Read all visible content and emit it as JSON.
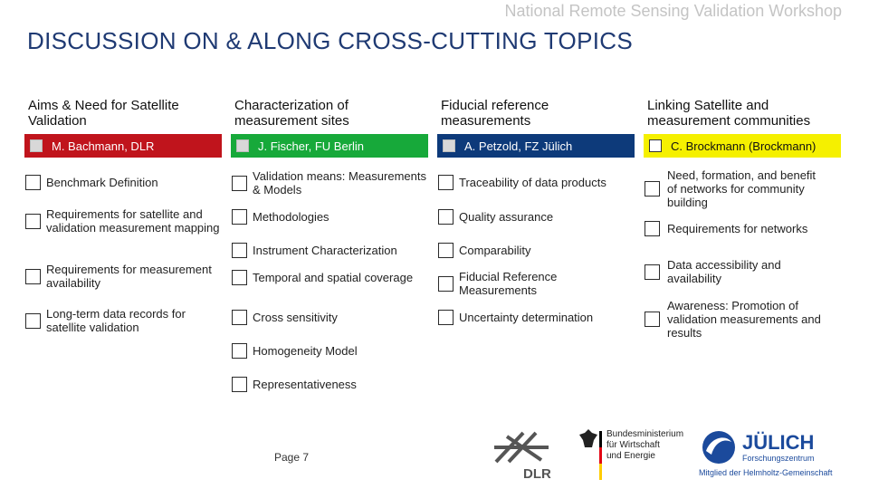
{
  "header": {
    "workshop_title": "National Remote Sensing Validation Workshop"
  },
  "slide_title": "DISCUSSION ON & ALONG CROSS-CUTTING TOPICS",
  "columns": [
    {
      "heading": "Aims & Need for Satellite Validation",
      "lead": "M. Bachmann, DLR",
      "lead_color": "#c0141c",
      "items": [
        "Benchmark Definition",
        "Requirements for satellite and validation measurement mapping",
        "Requirements for measurement availability",
        "Long-term data records for satellite validation"
      ]
    },
    {
      "heading": "Characterization of measurement sites",
      "lead": "J. Fischer, FU Berlin",
      "lead_color": "#17a93a",
      "items": [
        "Validation means: Measurements & Models",
        "Methodologies",
        "Instrument Characterization",
        "Temporal and spatial coverage",
        "Cross sensitivity",
        "Homogeneity Model",
        "Representativeness"
      ]
    },
    {
      "heading": "Fiducial reference measurements",
      "lead": "A. Petzold, FZ Jülich",
      "lead_color": "#0d3a7a",
      "items": [
        "Traceability of data products",
        "Quality assurance",
        "Comparability",
        "Fiducial Reference Measurements",
        "Uncertainty determination"
      ]
    },
    {
      "heading": "Linking Satellite and measurement communities",
      "lead": "C. Brockmann (Brockmann)",
      "lead_color": "#f5f000",
      "items": [
        "Need, formation, and benefit of networks for community building",
        "Requirements for networks",
        "Data accessibility and availability",
        "Awareness: Promotion of validation measurements and results"
      ]
    }
  ],
  "footer": {
    "page_label": "Page 7",
    "dlr_logo_text": "DLR",
    "ministry_line1": "Bundesministerium",
    "ministry_line2": "für Wirtschaft",
    "ministry_line3": "und Energie",
    "juelich_name": "JÜLICH",
    "juelich_sub": "Forschungszentrum",
    "helmholtz_text": "Mitglied der Helmholtz-Gemeinschaft"
  }
}
